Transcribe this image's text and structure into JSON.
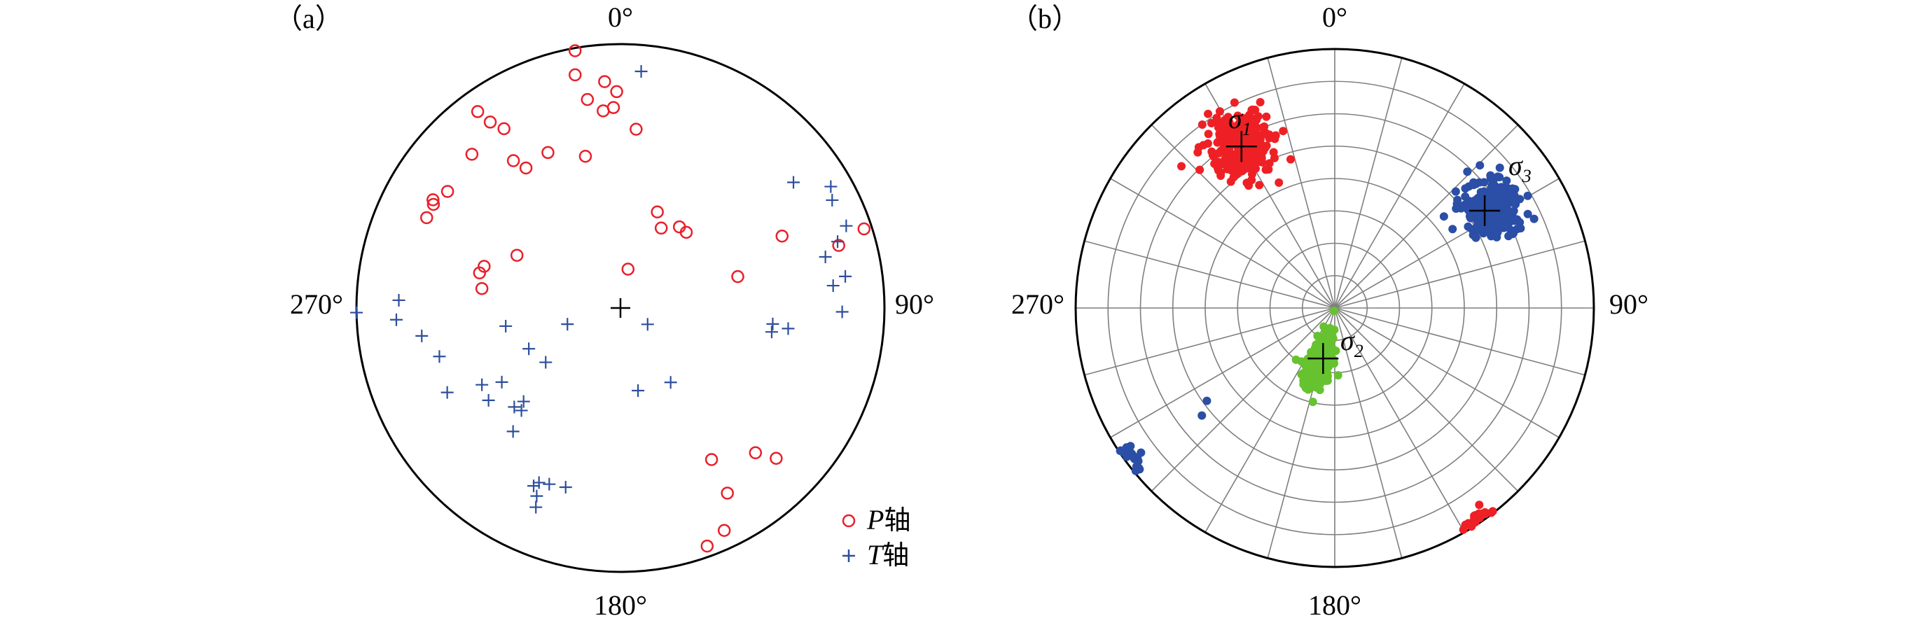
{
  "colors": {
    "p_axis": "#e8202a",
    "t_axis": "#2c4e9c",
    "sigma1": "#ee2025",
    "sigma2": "#66c22f",
    "sigma3": "#2b4ea6",
    "grid": "#7f7f7f",
    "outline": "#000000"
  },
  "panels": {
    "a": {
      "label": "（a）",
      "directions": {
        "north": "0°",
        "east": "90°",
        "south": "180°",
        "west": "270°"
      },
      "legend": {
        "p_prefix": "P",
        "p_suffix": "轴",
        "t_prefix": "T",
        "t_suffix": "轴",
        "p_icon": "open-circle-icon",
        "t_icon": "plus-marker-icon"
      }
    },
    "b": {
      "label": "（b）",
      "directions": {
        "north": "0°",
        "east": "90°",
        "south": "180°",
        "west": "270°"
      },
      "sigma_labels": [
        {
          "symbol": "σ",
          "index": "1"
        },
        {
          "symbol": "σ",
          "index": "2"
        },
        {
          "symbol": "σ",
          "index": "3"
        }
      ]
    }
  },
  "chart_data": [
    {
      "type": "scatter",
      "projection": "stereonet (lower hemisphere, polar)",
      "coords": "azimuth in degrees clockwise from north, r = normalized projected distance from centre (0 centre, 1 rim)",
      "series": [
        {
          "name": "P轴",
          "marker": "open-circle",
          "points": [
            [
              350,
              0.99
            ],
            [
              349,
              0.9
            ],
            [
              351,
              0.8
            ],
            [
              355,
              0.75
            ],
            [
              356,
              0.86
            ],
            [
              359,
              0.82
            ],
            [
              358,
              0.76
            ],
            [
              5,
              0.68
            ],
            [
              324,
              0.92
            ],
            [
              325,
              0.86
            ],
            [
              327,
              0.81
            ],
            [
              316,
              0.81
            ],
            [
              324,
              0.69
            ],
            [
              326,
              0.64
            ],
            [
              335,
              0.65
            ],
            [
              347,
              0.59
            ],
            [
              304,
              0.79
            ],
            [
              295,
              0.81
            ],
            [
              299,
              0.81
            ],
            [
              300,
              0.82
            ],
            [
              284,
              0.55
            ],
            [
              287,
              0.54
            ],
            [
              297,
              0.44
            ],
            [
              278,
              0.53
            ],
            [
              21,
              0.39
            ],
            [
              27,
              0.34
            ],
            [
              36,
              0.38
            ],
            [
              41,
              0.38
            ],
            [
              75,
              0.46
            ],
            [
              11,
              0.15
            ],
            [
              66,
              0.67
            ],
            [
              72,
              0.97
            ],
            [
              74,
              0.86
            ],
            [
              134,
              0.82
            ],
            [
              137,
              0.75
            ],
            [
              149,
              0.67
            ],
            [
              150,
              0.81
            ],
            [
              155,
              0.93
            ],
            [
              160,
              0.96
            ]
          ]
        },
        {
          "name": "T轴",
          "marker": "plus",
          "points": [
            [
              54,
              0.81
            ],
            [
              60,
              0.92
            ],
            [
              63,
              0.9
            ],
            [
              70,
              0.91
            ],
            [
              73,
              0.86
            ],
            [
              76,
              0.8
            ],
            [
              82,
              0.86
            ],
            [
              84,
              0.81
            ],
            [
              91,
              0.84
            ],
            [
              97,
              0.64
            ],
            [
              96,
              0.58
            ],
            [
              99,
              0.58
            ],
            [
              146,
              0.34
            ],
            [
              168,
              0.32
            ],
            [
              197,
              0.71
            ],
            [
              203,
              0.82
            ],
            [
              204,
              0.78
            ],
            [
              202,
              0.72
            ],
            [
              205,
              0.73
            ],
            [
              206,
              0.75
            ],
            [
              224,
              0.54
            ],
            [
              226,
              0.51
            ],
            [
              221,
              0.62
            ],
            [
              227,
              0.55
            ],
            [
              235,
              0.61
            ],
            [
              238,
              0.53
            ],
            [
              241,
              0.6
            ],
            [
              244,
              0.73
            ],
            [
              255,
              0.71
            ],
            [
              261,
              0.44
            ],
            [
              246,
              0.38
            ],
            [
              234,
              0.35
            ],
            [
              253,
              0.21
            ],
            [
              269,
              1.0
            ],
            [
              267,
              0.85
            ],
            [
              272,
              0.84
            ],
            [
              121,
              0.12
            ],
            [
              5,
              0.9
            ],
            [
              262,
              0.76
            ]
          ]
        }
      ]
    },
    {
      "type": "scatter",
      "projection": "stereonet (lower hemisphere, polar)",
      "grid": {
        "rings": 8,
        "spokes_deg": 15
      },
      "coords": "azimuth in degrees clockwise from north, r = normalized projected distance from centre (0 centre, 1 rim)",
      "clusters": [
        {
          "label": "σ1",
          "mean": [
            330,
            0.73
          ],
          "spread_deg": 9,
          "spread_r": 0.12,
          "count": 260
        },
        {
          "label": "σ1",
          "mean": [
            146,
            0.98
          ],
          "spread_deg": 4,
          "spread_r": 0.02,
          "count": 22
        },
        {
          "label": "σ2",
          "mean": [
            196,
            0.21
          ],
          "spread_deg": 12,
          "spread_r": 0.09,
          "count": 280
        },
        {
          "label": "σ3",
          "mean": [
            57,
            0.72
          ],
          "spread_deg": 8,
          "spread_r": 0.11,
          "count": 260
        },
        {
          "label": "σ3",
          "mean": [
            234,
            0.97
          ],
          "spread_deg": 3,
          "spread_r": 0.03,
          "count": 22
        }
      ],
      "outliers": [
        {
          "label": "σ1",
          "points": [
            [
              336,
              0.53
            ]
          ]
        },
        {
          "label": "σ3",
          "points": [
            [
              50,
              0.55
            ],
            [
              234,
              0.61
            ],
            [
              231,
              0.66
            ]
          ]
        }
      ],
      "best_fit": [
        {
          "label": "σ1",
          "point": [
            330,
            0.72
          ]
        },
        {
          "label": "σ2",
          "point": [
            193,
            0.2
          ]
        },
        {
          "label": "σ3",
          "point": [
            57,
            0.69
          ]
        }
      ]
    }
  ]
}
